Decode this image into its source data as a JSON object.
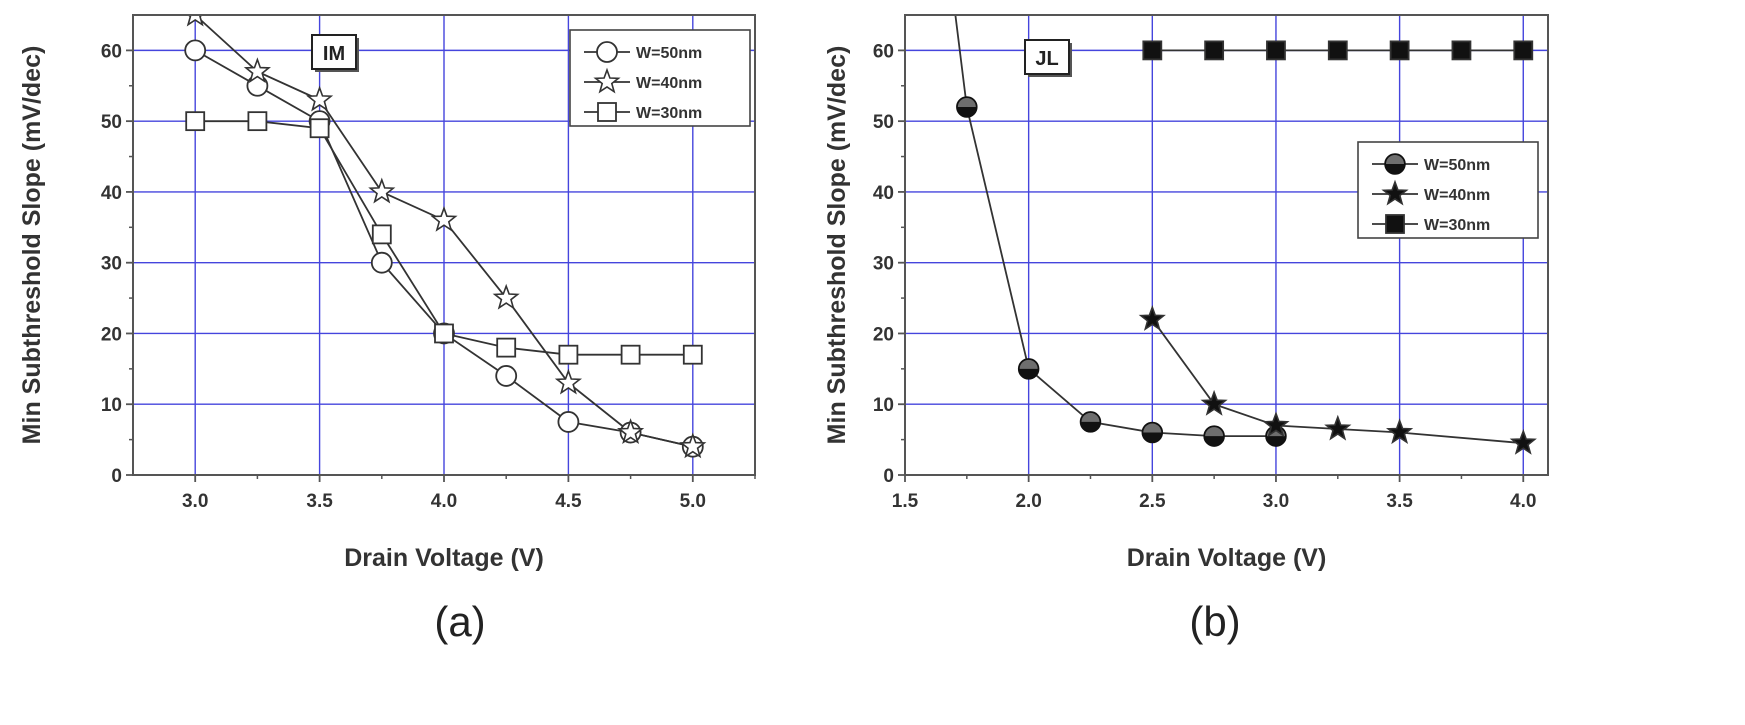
{
  "figure_labels": {
    "a": "(a)",
    "b": "(b)"
  },
  "chart_data": [
    {
      "type": "line",
      "panel": "(a)",
      "annotation": "IM",
      "xlabel": "Drain Voltage (V)",
      "ylabel": "Min Subthreshold Slope (mV/dec)",
      "xlim": [
        2.75,
        5.25
      ],
      "ylim": [
        0,
        65
      ],
      "xticks": [
        "3.0",
        "3.5",
        "4.0",
        "4.5",
        "5.0"
      ],
      "yticks": [
        "0",
        "10",
        "20",
        "30",
        "40",
        "50",
        "60"
      ],
      "grid": true,
      "legend": "top-right",
      "series": [
        {
          "name": "W=50nm",
          "marker": "circle-open",
          "x": [
            3.0,
            3.25,
            3.5,
            3.75,
            4.0,
            4.25,
            4.5,
            4.75,
            5.0
          ],
          "y": [
            60,
            55,
            50,
            30,
            20,
            14,
            7.5,
            6,
            4
          ]
        },
        {
          "name": "W=40nm",
          "marker": "star-open",
          "x": [
            3.0,
            3.25,
            3.5,
            3.75,
            4.0,
            4.25,
            4.5,
            4.75,
            5.0
          ],
          "y": [
            65,
            57,
            53,
            40,
            36,
            25,
            13,
            6,
            4
          ]
        },
        {
          "name": "W=30nm",
          "marker": "square-open",
          "x": [
            3.0,
            3.25,
            3.5,
            3.75,
            4.0,
            4.25,
            4.5,
            4.75,
            5.0
          ],
          "y": [
            50,
            50,
            49,
            34,
            20,
            18,
            17,
            17,
            17
          ]
        }
      ]
    },
    {
      "type": "line",
      "panel": "(b)",
      "annotation": "JL",
      "xlabel": "Drain Voltage (V)",
      "ylabel": "Min Subthreshold Slope (mV/dec)",
      "xlim": [
        1.5,
        4.1
      ],
      "ylim": [
        0,
        65
      ],
      "xticks": [
        "1.5",
        "2.0",
        "2.5",
        "3.0",
        "3.5",
        "4.0"
      ],
      "yticks": [
        "0",
        "10",
        "20",
        "30",
        "40",
        "50",
        "60"
      ],
      "grid": true,
      "legend": "right",
      "series": [
        {
          "name": "W=50nm",
          "marker": "circle-filled",
          "x": [
            1.75,
            2.0,
            2.25,
            2.5,
            2.75,
            3.0
          ],
          "y": [
            52,
            15,
            7.5,
            6,
            5.5,
            5.5
          ]
        },
        {
          "name": "W=40nm",
          "marker": "star-filled",
          "x": [
            2.5,
            2.75,
            3.0,
            3.25,
            3.5,
            4.0
          ],
          "y": [
            22,
            10,
            7,
            6.5,
            6,
            4.5
          ]
        },
        {
          "name": "W=30nm",
          "marker": "square-filled",
          "x": [
            2.5,
            2.75,
            3.0,
            3.25,
            3.5,
            3.75,
            4.0
          ],
          "y": [
            60,
            60,
            60,
            60,
            60,
            60,
            60
          ]
        }
      ]
    }
  ]
}
